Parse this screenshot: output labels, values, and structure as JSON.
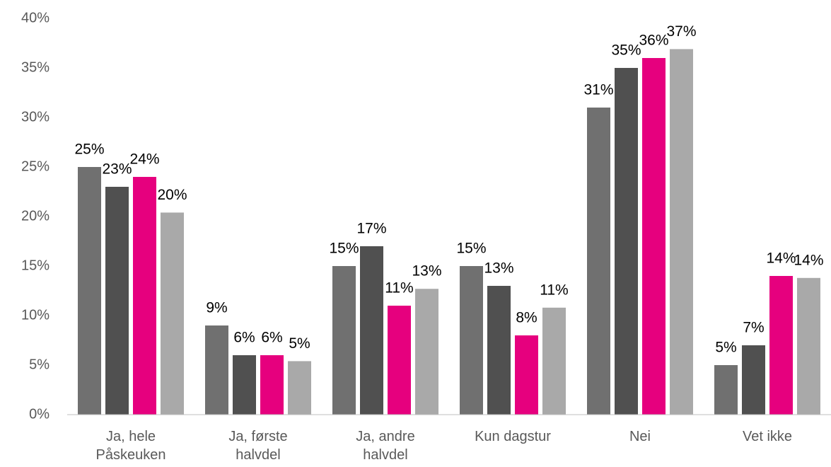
{
  "chart_data": {
    "type": "bar",
    "categories": [
      "Ja, hele\nPåskeuken",
      "Ja, første\nhalvdel",
      "Ja, andre\nhalvdel",
      "Kun dagstur",
      "Nei",
      "Vet ikke"
    ],
    "series": [
      {
        "color": "#707070",
        "values": [
          25,
          9,
          15,
          15,
          31,
          5
        ],
        "value_labels": [
          "25%",
          "9%",
          "15%",
          "15%",
          "31%",
          "5%"
        ]
      },
      {
        "color": "#505050",
        "values": [
          23,
          6,
          17,
          13,
          35,
          7
        ],
        "value_labels": [
          "23%",
          "6%",
          "17%",
          "13%",
          "35%",
          "7%"
        ]
      },
      {
        "color": "#e6007e",
        "values": [
          24,
          6,
          11,
          8,
          36,
          14
        ],
        "value_labels": [
          "24%",
          "6%",
          "11%",
          "8%",
          "36%",
          "14%"
        ]
      },
      {
        "color": "#a9a9a9",
        "values": [
          20.4,
          5.4,
          12.7,
          10.8,
          36.9,
          13.8
        ],
        "value_labels": [
          "20%",
          "5%",
          "13%",
          "11%",
          "37%",
          "14%"
        ]
      }
    ],
    "ylim": [
      0,
      40
    ],
    "yticks": [
      {
        "value": 0,
        "label": "0%"
      },
      {
        "value": 5,
        "label": "5%"
      },
      {
        "value": 10,
        "label": "10%"
      },
      {
        "value": 15,
        "label": "15%"
      },
      {
        "value": 20,
        "label": "20%"
      },
      {
        "value": 25,
        "label": "25%"
      },
      {
        "value": 30,
        "label": "30%"
      },
      {
        "value": 35,
        "label": "35%"
      },
      {
        "value": 40,
        "label": "40%"
      }
    ],
    "grid": false
  }
}
